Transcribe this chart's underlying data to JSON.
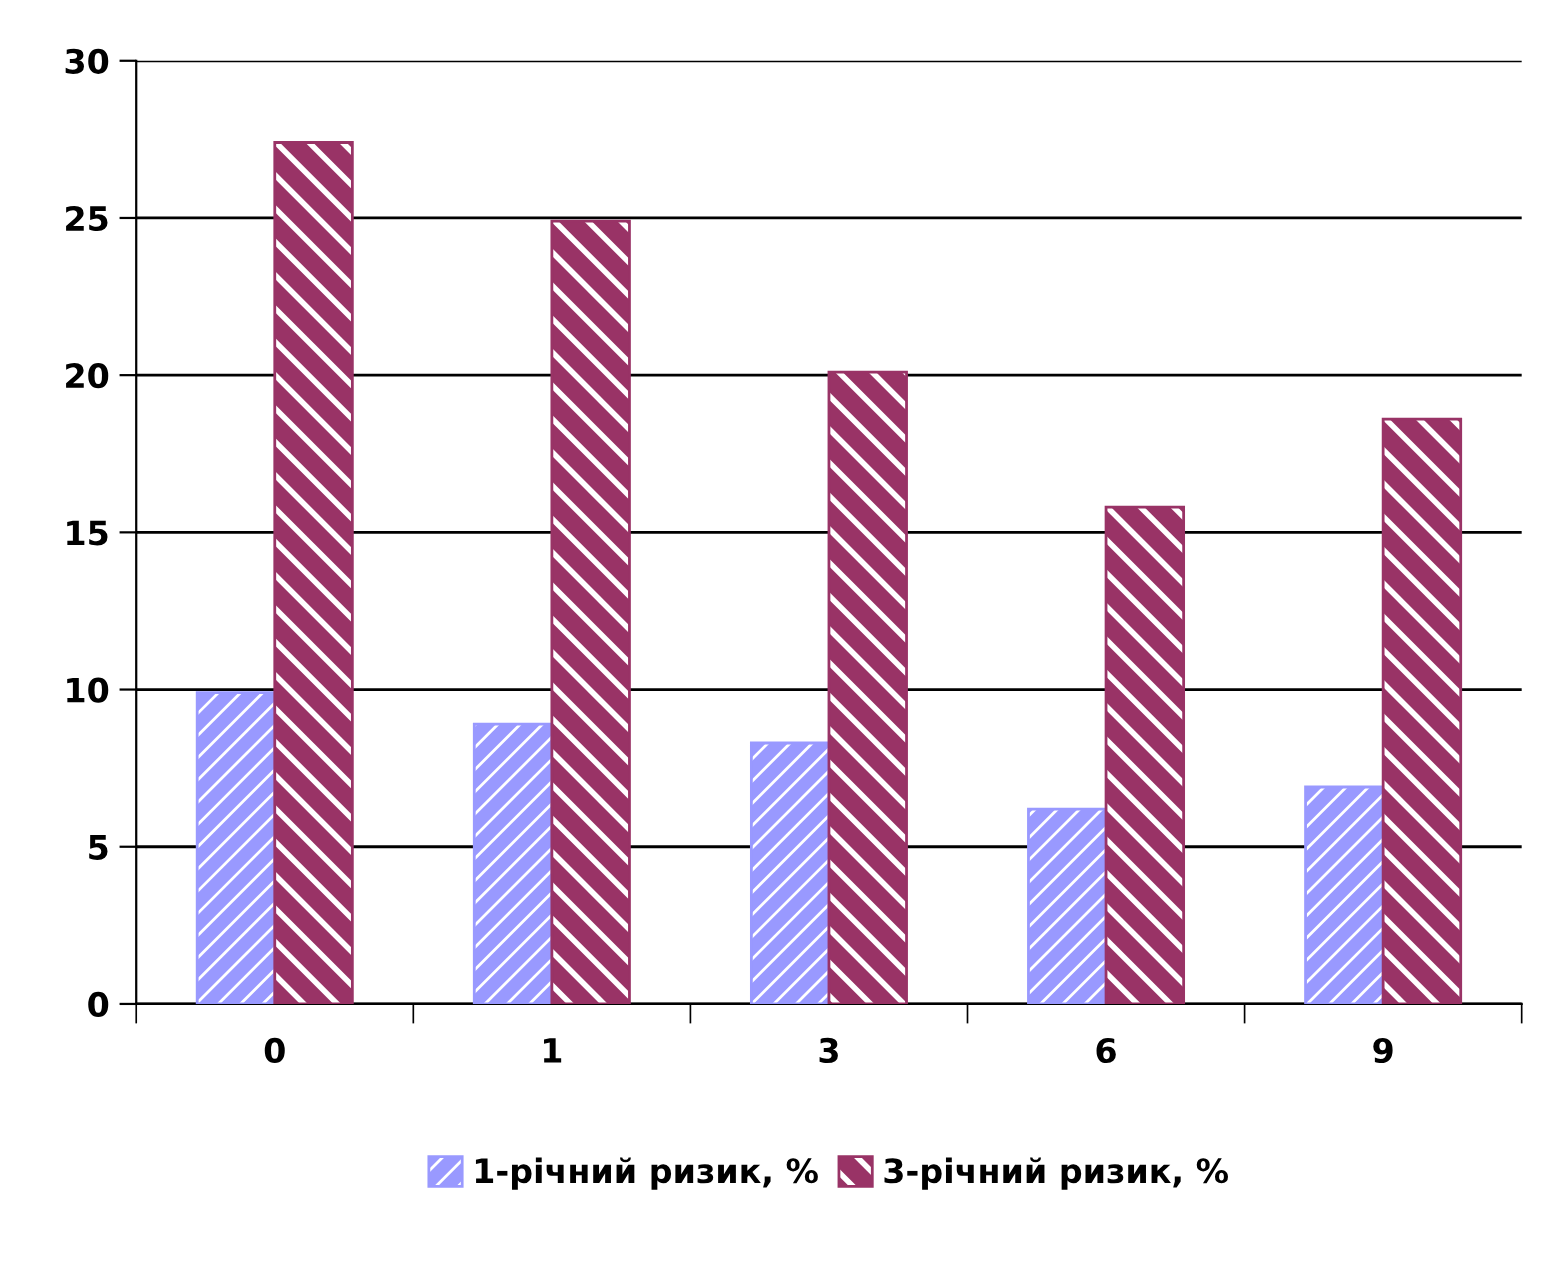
{
  "chart_data": {
    "type": "bar",
    "categories": [
      "0",
      "1",
      "3",
      "6",
      "9"
    ],
    "series": [
      {
        "name": "1-річний ризик, %",
        "color": "#9999ff",
        "values": [
          9.9,
          8.9,
          8.3,
          6.2,
          6.9
        ]
      },
      {
        "name": "3-річний ризик, %",
        "color": "#993366",
        "values": [
          27.4,
          24.9,
          20.1,
          15.8,
          18.6
        ]
      }
    ],
    "ylim": [
      0,
      30
    ],
    "yticks": [
      0,
      5,
      10,
      15,
      20,
      25,
      30
    ],
    "grid": "y",
    "legend": "bottom"
  }
}
